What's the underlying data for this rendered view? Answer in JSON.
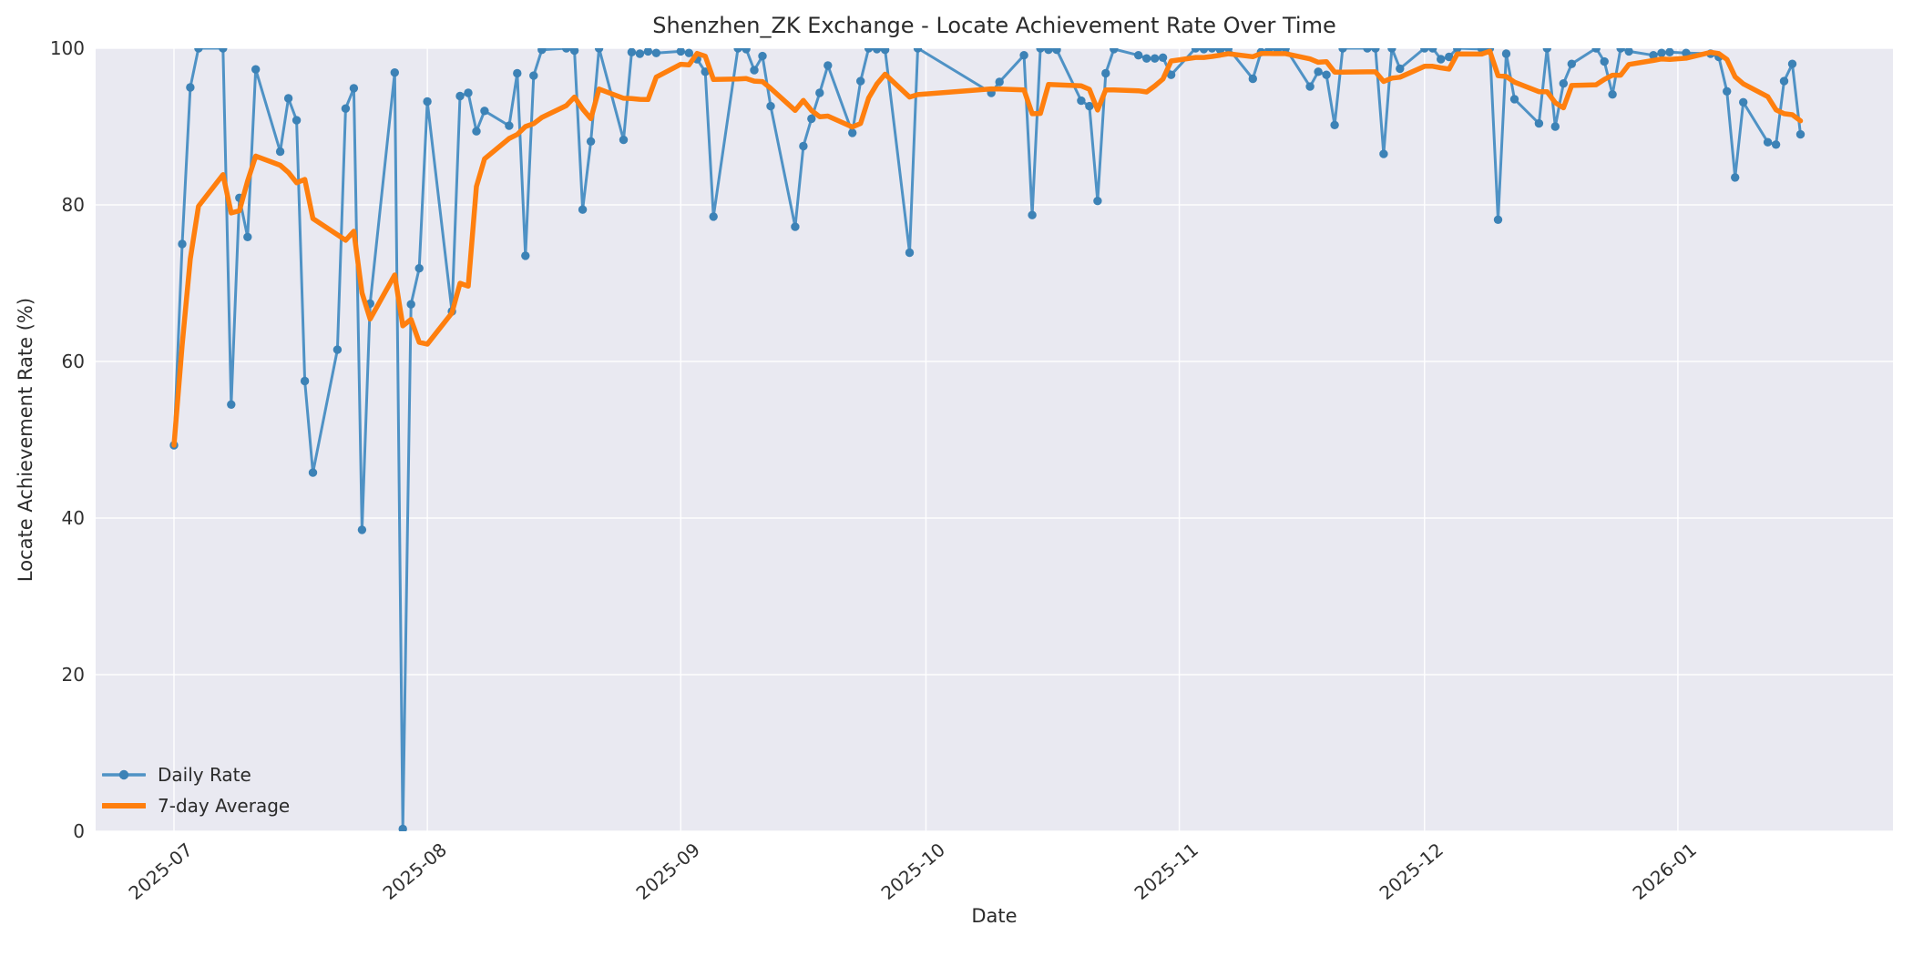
{
  "chart_data": {
    "type": "line",
    "title": "Shenzhen_ZK Exchange - Locate Achievement Rate Over Time",
    "xlabel": "Date",
    "ylabel": "Locate Achievement Rate (%)",
    "ylim": [
      0,
      100
    ],
    "grid": true,
    "legend_position": "lower left",
    "background_color": "#e9e9f1",
    "grid_color": "#ffffff",
    "text_color": "#2b2b2b",
    "tick_color": "#303030",
    "x_tick_labels": [
      "2025-07",
      "2025-08",
      "2025-09",
      "2025-10",
      "2025-11",
      "2025-12",
      "2026-01"
    ],
    "y_tick_labels": [
      "0",
      "20",
      "40",
      "60",
      "80",
      "100"
    ],
    "y_tick_values": [
      0,
      20,
      40,
      60,
      80,
      100
    ],
    "series": [
      {
        "name": "Daily Rate",
        "style": "line+markers",
        "color": "#4f92c5",
        "marker_color": "#3c82b6",
        "dates": [
          "2025-07-01",
          "2025-07-02",
          "2025-07-03",
          "2025-07-04",
          "2025-07-07",
          "2025-07-08",
          "2025-07-09",
          "2025-07-10",
          "2025-07-11",
          "2025-07-14",
          "2025-07-15",
          "2025-07-16",
          "2025-07-17",
          "2025-07-18",
          "2025-07-21",
          "2025-07-22",
          "2025-07-23",
          "2025-07-24",
          "2025-07-25",
          "2025-07-28",
          "2025-07-29",
          "2025-07-30",
          "2025-07-31",
          "2025-08-01",
          "2025-08-04",
          "2025-08-05",
          "2025-08-06",
          "2025-08-07",
          "2025-08-08",
          "2025-08-11",
          "2025-08-12",
          "2025-08-13",
          "2025-08-14",
          "2025-08-15",
          "2025-08-18",
          "2025-08-19",
          "2025-08-20",
          "2025-08-21",
          "2025-08-22",
          "2025-08-25",
          "2025-08-26",
          "2025-08-27",
          "2025-08-28",
          "2025-08-29",
          "2025-09-01",
          "2025-09-02",
          "2025-09-03",
          "2025-09-04",
          "2025-09-05",
          "2025-09-08",
          "2025-09-09",
          "2025-09-10",
          "2025-09-11",
          "2025-09-12",
          "2025-09-15",
          "2025-09-16",
          "2025-09-17",
          "2025-09-18",
          "2025-09-19",
          "2025-09-22",
          "2025-09-23",
          "2025-09-24",
          "2025-09-25",
          "2025-09-26",
          "2025-09-29",
          "2025-09-30",
          "2025-10-09",
          "2025-10-10",
          "2025-10-13",
          "2025-10-14",
          "2025-10-15",
          "2025-10-16",
          "2025-10-17",
          "2025-10-20",
          "2025-10-21",
          "2025-10-22",
          "2025-10-23",
          "2025-10-24",
          "2025-10-27",
          "2025-10-28",
          "2025-10-29",
          "2025-10-30",
          "2025-10-31",
          "2025-11-03",
          "2025-11-04",
          "2025-11-05",
          "2025-11-06",
          "2025-11-07",
          "2025-11-10",
          "2025-11-11",
          "2025-11-12",
          "2025-11-13",
          "2025-11-14",
          "2025-11-17",
          "2025-11-18",
          "2025-11-19",
          "2025-11-20",
          "2025-11-21",
          "2025-11-24",
          "2025-11-25",
          "2025-11-26",
          "2025-11-27",
          "2025-11-28",
          "2025-12-01",
          "2025-12-02",
          "2025-12-03",
          "2025-12-04",
          "2025-12-05",
          "2025-12-08",
          "2025-12-09",
          "2025-12-10",
          "2025-12-11",
          "2025-12-12",
          "2025-12-15",
          "2025-12-16",
          "2025-12-17",
          "2025-12-18",
          "2025-12-19",
          "2025-12-22",
          "2025-12-23",
          "2025-12-24",
          "2025-12-25",
          "2025-12-26",
          "2025-12-29",
          "2025-12-30",
          "2025-12-31",
          "2026-01-02",
          "2026-01-05",
          "2026-01-06",
          "2026-01-07",
          "2026-01-08",
          "2026-01-09",
          "2026-01-12",
          "2026-01-13",
          "2026-01-14",
          "2026-01-15",
          "2026-01-16"
        ],
        "values": [
          49.3,
          75.0,
          95.0,
          100.0,
          100.0,
          54.5,
          80.9,
          75.9,
          97.3,
          86.8,
          93.6,
          90.8,
          57.5,
          45.8,
          61.5,
          92.3,
          94.9,
          38.5,
          67.4,
          96.9,
          0.3,
          67.3,
          71.9,
          93.2,
          66.4,
          93.9,
          94.3,
          89.4,
          92.0,
          90.1,
          96.8,
          73.5,
          96.5,
          99.8,
          100.0,
          99.7,
          79.4,
          88.1,
          100.0,
          88.3,
          99.5,
          99.3,
          99.6,
          99.4,
          99.6,
          99.4,
          98.6,
          97.0,
          78.5,
          100.0,
          99.9,
          97.2,
          99.0,
          92.6,
          77.2,
          87.5,
          91.0,
          94.3,
          97.8,
          89.2,
          95.8,
          100.0,
          99.9,
          99.8,
          73.9,
          100.0,
          94.3,
          95.7,
          99.1,
          78.7,
          100.0,
          99.8,
          99.8,
          93.3,
          92.6,
          80.5,
          96.8,
          99.9,
          99.1,
          98.7,
          98.7,
          98.8,
          96.6,
          100.0,
          99.9,
          100.0,
          99.8,
          100.0,
          96.1,
          99.5,
          100.0,
          99.8,
          100.0,
          95.1,
          97.0,
          96.6,
          90.2,
          100.0,
          100.0,
          100.0,
          86.5,
          100.0,
          97.4,
          100.0,
          100.0,
          98.6,
          98.9,
          100.0,
          99.9,
          100.0,
          78.1,
          99.3,
          93.5,
          90.4,
          100.0,
          90.0,
          95.5,
          98.0,
          100.0,
          98.3,
          94.1,
          100.0,
          99.6,
          99.1,
          99.4,
          99.5,
          99.4,
          99.3,
          98.9,
          94.5,
          83.5,
          93.1,
          88.0,
          87.7,
          95.8,
          98.0,
          89.0
        ]
      },
      {
        "name": "7-day Average",
        "style": "line",
        "color": "#ff7f0e",
        "derivation": "7-day rolling mean of Daily Rate values (window of up to 7 most recent points)"
      }
    ]
  }
}
